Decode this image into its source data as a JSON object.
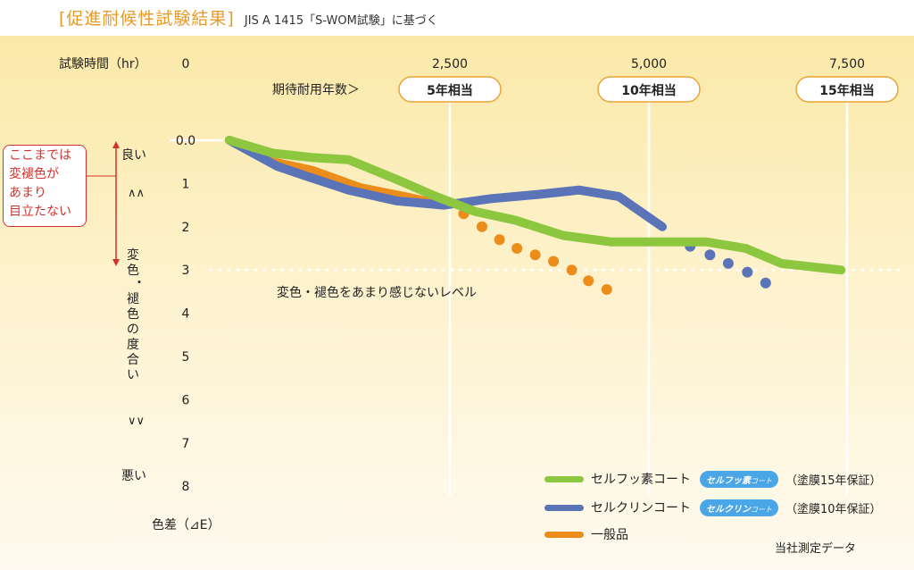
{
  "header": {
    "title": "[促進耐候性試験結果]",
    "subtitle": "JIS A 1415「S-WOM試験」に基づく"
  },
  "axis_labels": {
    "x_label": "試験時間（hr）",
    "expected_years_label": "期待耐用年数＞",
    "y_label": "色差（⊿E）",
    "good": "良い",
    "bad": "悪い",
    "arrows_up": "∧∧",
    "arrows_down": "∨∨",
    "degree_vertical": "変色・褪色の度合い"
  },
  "note_box": "ここまでは\n変褪色が\nあまり\n目立たない",
  "threshold_label": "変色・褪色をあまり感じないレベル",
  "source_note": "当社測定データ",
  "year_badges": [
    "5年相当",
    "10年相当",
    "15年相当"
  ],
  "colors": {
    "fluoro": "#8dc63f",
    "silicon": "#5b74b8",
    "general": "#eb8c1b",
    "title": "#e89a28",
    "note": "#d2322d"
  },
  "legend": [
    {
      "label": "セルフッ素コート",
      "logo": "セルフッ素",
      "logo_small": "コート",
      "warranty": "（塗膜15年保証）",
      "color": "#8dc63f"
    },
    {
      "label": "セルクリンコート",
      "logo": "セルクリン",
      "logo_small": "コート",
      "warranty": "（塗膜10年保証）",
      "color": "#5b74b8"
    },
    {
      "label": "一般品",
      "logo": "",
      "logo_small": "",
      "warranty": "",
      "color": "#eb8c1b"
    }
  ],
  "chart_data": {
    "type": "line",
    "xlabel": "試験時間（hr）",
    "ylabel": "色差（⊿E）",
    "x_ticks": [
      "0",
      "2,500",
      "5,000",
      "7,500"
    ],
    "x_tick_values": [
      0,
      2500,
      5000,
      7500
    ],
    "y_ticks": [
      "0.0",
      "1",
      "2",
      "3",
      "4",
      "5",
      "6",
      "7",
      "8"
    ],
    "ylim": [
      0,
      8
    ],
    "xlim": [
      0,
      8200
    ],
    "y_inverted": true,
    "threshold": 3,
    "series": [
      {
        "name": "セルフッ素コート",
        "solid": [
          [
            500,
            0
          ],
          [
            1050,
            0.3
          ],
          [
            1550,
            0.4
          ],
          [
            2000,
            0.45
          ],
          [
            2600,
            0.9
          ],
          [
            3100,
            1.3
          ],
          [
            3600,
            1.65
          ],
          [
            4100,
            1.85
          ],
          [
            4700,
            2.2
          ],
          [
            5300,
            2.35
          ],
          [
            5900,
            2.35
          ],
          [
            6500,
            2.35
          ],
          [
            7000,
            2.5
          ],
          [
            7450,
            2.85
          ],
          [
            7950,
            2.95
          ],
          [
            8200,
            3.0
          ]
        ],
        "dotted": []
      },
      {
        "name": "セルクリンコート",
        "solid": [
          [
            500,
            0
          ],
          [
            1100,
            0.6
          ],
          [
            1500,
            0.85
          ],
          [
            2000,
            1.15
          ],
          [
            2600,
            1.4
          ],
          [
            3200,
            1.5
          ],
          [
            3800,
            1.35
          ],
          [
            4400,
            1.25
          ],
          [
            4900,
            1.15
          ],
          [
            5400,
            1.3
          ],
          [
            5950,
            2.0
          ]
        ],
        "dotted": [
          [
            6300,
            2.45
          ],
          [
            6550,
            2.65
          ],
          [
            6780,
            2.85
          ],
          [
            7020,
            3.05
          ],
          [
            7250,
            3.3
          ]
        ]
      },
      {
        "name": "一般品",
        "solid": [
          [
            500,
            0
          ],
          [
            1050,
            0.5
          ],
          [
            1550,
            0.7
          ],
          [
            2150,
            1.1
          ],
          [
            2700,
            1.3
          ],
          [
            3200,
            1.5
          ]
        ],
        "dotted": [
          [
            3450,
            1.7
          ],
          [
            3680,
            2.0
          ],
          [
            3900,
            2.3
          ],
          [
            4120,
            2.5
          ],
          [
            4350,
            2.65
          ],
          [
            4580,
            2.8
          ],
          [
            4810,
            3.0
          ],
          [
            5020,
            3.25
          ],
          [
            5250,
            3.45
          ]
        ]
      }
    ]
  }
}
